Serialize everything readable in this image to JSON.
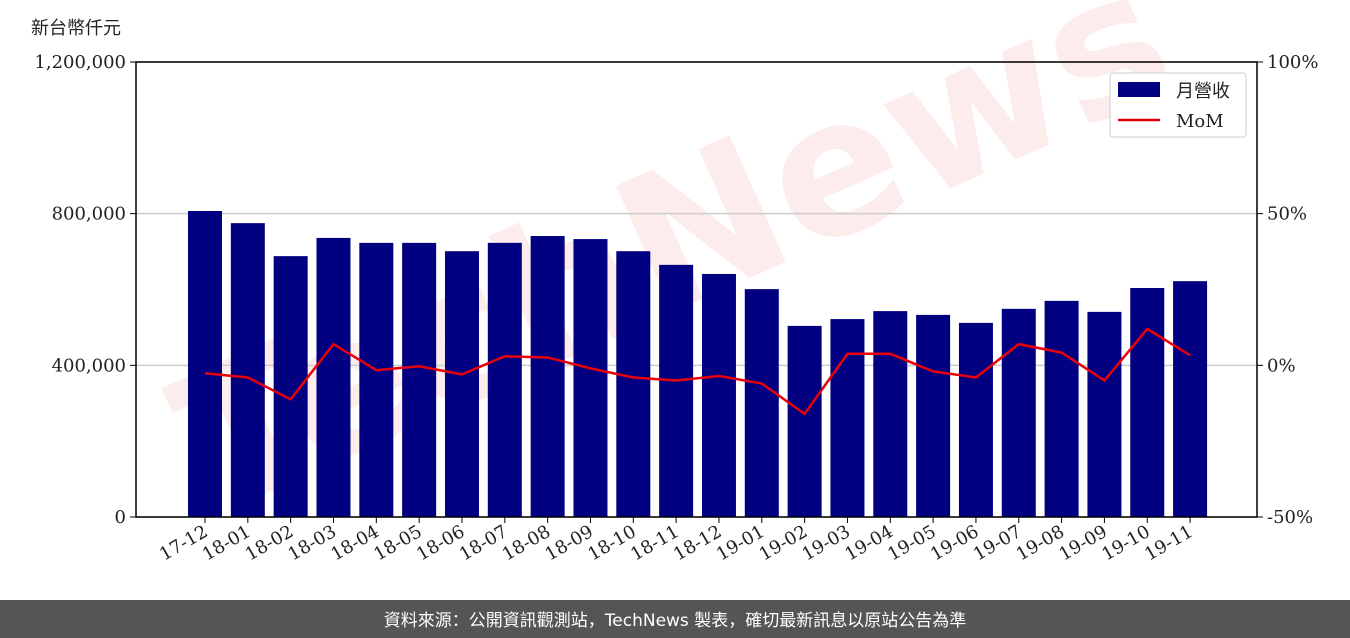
{
  "chart_data": {
    "type": "bar_line",
    "y_label": "新台幣仟元",
    "watermark": "TechNews",
    "footer": "資料來源：公開資訊觀測站，TechNews 製表，確切最新訊息以原站公告為準",
    "categories": [
      "17-12",
      "18-01",
      "18-02",
      "18-03",
      "18-04",
      "18-05",
      "18-06",
      "18-07",
      "18-08",
      "18-09",
      "18-10",
      "18-11",
      "18-12",
      "19-01",
      "19-02",
      "19-03",
      "19-04",
      "19-05",
      "19-06",
      "19-07",
      "19-08",
      "19-09",
      "19-10",
      "19-11"
    ],
    "series": [
      {
        "name": "月營收",
        "color": "#000080",
        "type": "bar",
        "values": [
          807000,
          775000,
          688000,
          736000,
          723000,
          723000,
          701000,
          723000,
          741000,
          733000,
          701000,
          665000,
          641000,
          601000,
          504000,
          522000,
          543000,
          533000,
          512000,
          549000,
          570000,
          541000,
          604000,
          622000
        ]
      },
      {
        "name": "MoM",
        "color": "#e8000b",
        "type": "line",
        "axis": "y2",
        "values": [
          -2.6,
          -4,
          -11.2,
          7,
          -1.6,
          -0.3,
          -3,
          3,
          2.6,
          -1,
          -4,
          -5,
          -3.5,
          -6,
          -16,
          3.8,
          3.8,
          -2,
          -4,
          7,
          4.2,
          -5,
          12,
          3.3
        ]
      }
    ],
    "ylim": [
      0,
      1200000
    ],
    "yticks": [
      {
        "value": 0,
        "label": "0"
      },
      {
        "value": 400000,
        "label": "400,000"
      },
      {
        "value": 800000,
        "label": "800,000"
      },
      {
        "value": 1200000,
        "label": "1,200,000"
      }
    ],
    "y2lim": [
      -50,
      100
    ],
    "y2ticks": [
      {
        "value": -50,
        "label": "-50%"
      },
      {
        "value": 0,
        "label": "0%"
      },
      {
        "value": 50,
        "label": "50%"
      },
      {
        "value": 100,
        "label": "100%"
      }
    ],
    "grid": true,
    "legend": "upper right"
  }
}
